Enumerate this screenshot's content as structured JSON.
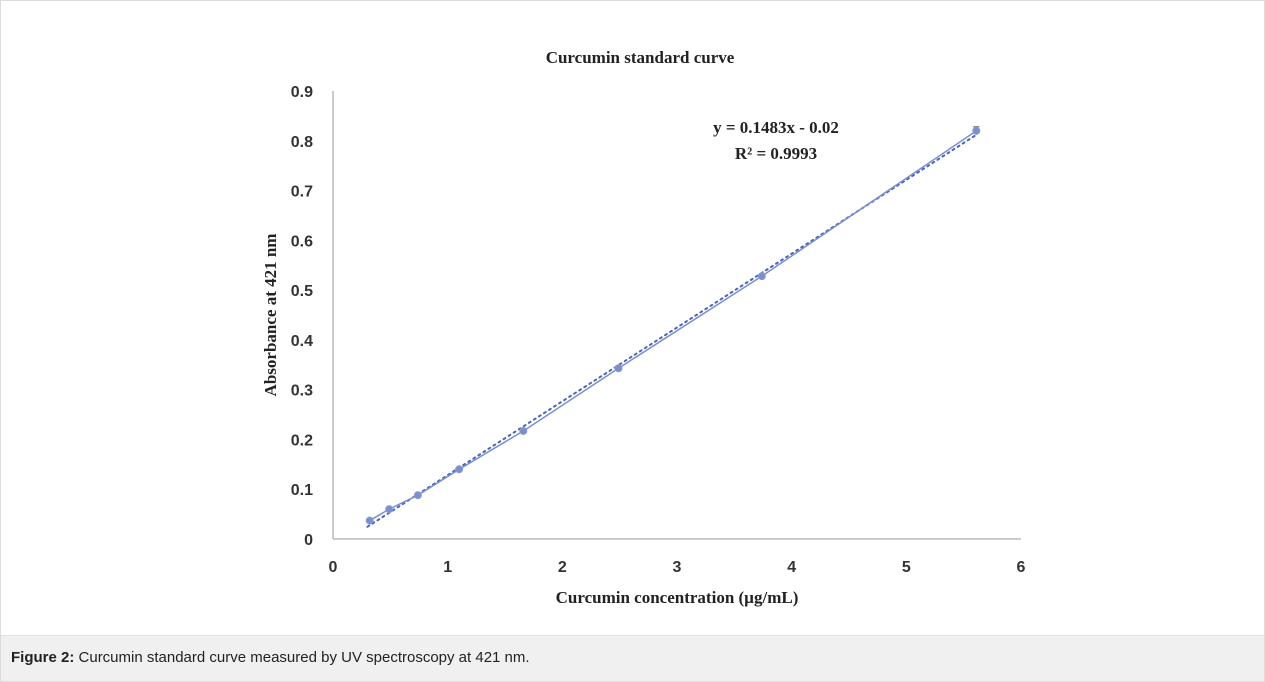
{
  "chart_data": {
    "type": "scatter",
    "title": "Curcumin standard curve",
    "xlabel": "Curcumin concentration (µg/mL)",
    "ylabel": "Absorbance at 421 nm",
    "xlim": [
      0,
      6
    ],
    "ylim": [
      0,
      0.9
    ],
    "x_ticks": [
      0,
      1,
      2,
      3,
      4,
      5,
      6
    ],
    "y_ticks": [
      0,
      0.1,
      0.2,
      0.3,
      0.4,
      0.5,
      0.6,
      0.7,
      0.8,
      0.9
    ],
    "grid": false,
    "series": [
      {
        "x": [
          0.32,
          0.49,
          0.74,
          1.1,
          1.66,
          2.49,
          3.74,
          5.61
        ],
        "y": [
          0.037,
          0.06,
          0.088,
          0.14,
          0.217,
          0.343,
          0.528,
          0.82
        ],
        "error": [
          0.003,
          0.003,
          0.003,
          0.004,
          0.004,
          0.004,
          0.005,
          0.008
        ],
        "color": "#7a8fce"
      }
    ],
    "trendline": {
      "slope": 0.1483,
      "intercept": -0.02,
      "equation": "y = 0.1483x - 0.02",
      "r_squared": "R² = 0.9993"
    }
  },
  "caption": {
    "label": "Figure 2:",
    "text": "Curcumin standard curve measured by UV spectroscopy at 421 nm."
  }
}
